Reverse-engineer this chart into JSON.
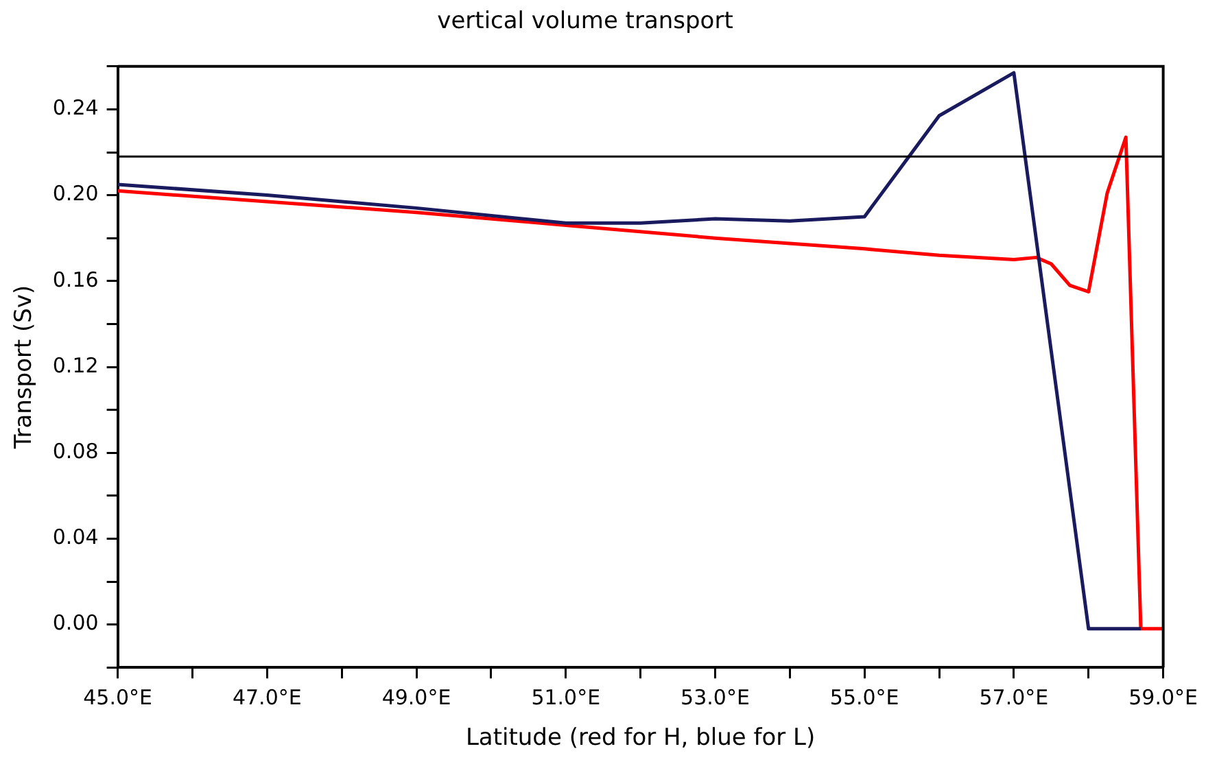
{
  "chart_data": {
    "type": "line",
    "title": "vertical volume transport",
    "xlabel": "Latitude (red for H, blue for L)",
    "ylabel": "Transport (Sv)",
    "xlim": [
      45,
      59
    ],
    "xticks": [
      {
        "value": 45,
        "label": "45.0°E"
      },
      {
        "value": 46,
        "label": null
      },
      {
        "value": 47,
        "label": "47.0°E"
      },
      {
        "value": 48,
        "label": null
      },
      {
        "value": 49,
        "label": "49.0°E"
      },
      {
        "value": 50,
        "label": null
      },
      {
        "value": 51,
        "label": "51.0°E"
      },
      {
        "value": 52,
        "label": null
      },
      {
        "value": 53,
        "label": "53.0°E"
      },
      {
        "value": 54,
        "label": null
      },
      {
        "value": 55,
        "label": "55.0°E"
      },
      {
        "value": 56,
        "label": null
      },
      {
        "value": 57,
        "label": "57.0°E"
      },
      {
        "value": 58,
        "label": null
      },
      {
        "value": 59,
        "label": "59.0°E"
      }
    ],
    "ylim": [
      -0.02,
      0.26
    ],
    "yticks": [
      {
        "value": -0.02,
        "label": null
      },
      {
        "value": 0,
        "label": "0.00"
      },
      {
        "value": 0.02,
        "label": null
      },
      {
        "value": 0.04,
        "label": "0.04"
      },
      {
        "value": 0.06,
        "label": null
      },
      {
        "value": 0.08,
        "label": "0.08"
      },
      {
        "value": 0.1,
        "label": null
      },
      {
        "value": 0.12,
        "label": "0.12"
      },
      {
        "value": 0.14,
        "label": null
      },
      {
        "value": 0.16,
        "label": "0.16"
      },
      {
        "value": 0.18,
        "label": null
      },
      {
        "value": 0.2,
        "label": "0.20"
      },
      {
        "value": 0.22,
        "label": null
      },
      {
        "value": 0.24,
        "label": "0.24"
      },
      {
        "value": 0.26,
        "label": null
      }
    ],
    "series": [
      {
        "color": "#1a1a5e",
        "x": [
          45,
          47,
          49,
          51,
          52,
          53,
          54,
          55,
          56,
          57,
          58,
          58.7
        ],
        "values": [
          0.205,
          0.2,
          0.194,
          0.187,
          0.187,
          0.189,
          0.188,
          0.19,
          0.237,
          0.257,
          -0.002,
          -0.002
        ]
      },
      {
        "color": "#ff0000",
        "x": [
          45,
          47,
          49,
          51,
          53,
          55,
          56,
          57,
          57.3,
          57.5,
          57.75,
          58,
          58.25,
          58.5,
          58.7,
          59
        ],
        "values": [
          0.202,
          0.197,
          0.192,
          0.186,
          0.18,
          0.175,
          0.172,
          0.17,
          0.171,
          0.168,
          0.158,
          0.155,
          0.201,
          0.227,
          -0.002,
          -0.002
        ]
      }
    ],
    "ref_lines": [
      {
        "axis": "y",
        "value": 0.218,
        "color": "#000000"
      }
    ],
    "marker": "none",
    "line_style": "solid",
    "legend": false
  }
}
